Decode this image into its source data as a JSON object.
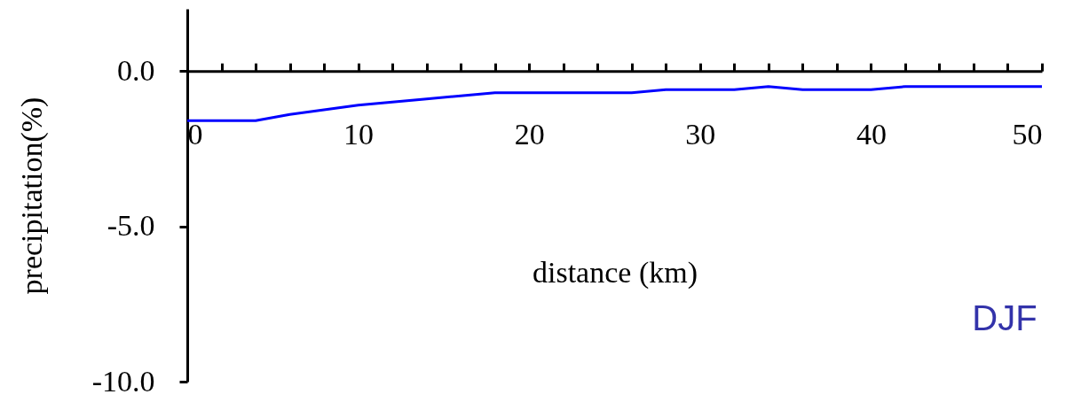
{
  "chart_data": {
    "type": "line",
    "xlabel": "distance (km)",
    "ylabel": "precipitation(%)",
    "annotations": [
      "DJF"
    ],
    "x": [
      0,
      4,
      6,
      10,
      12,
      14,
      16,
      18,
      20,
      22,
      26,
      28,
      32,
      34,
      36,
      40,
      42,
      50
    ],
    "series": [
      {
        "color": "#0000ff",
        "values": [
          -1.6,
          -1.6,
          -1.4,
          -1.1,
          -1.0,
          -0.9,
          -0.8,
          -0.7,
          -0.7,
          -0.7,
          -0.7,
          -0.6,
          -0.6,
          -0.5,
          -0.6,
          -0.6,
          -0.5,
          -0.5
        ]
      }
    ],
    "xlim": [
      0,
      50
    ],
    "ylim": [
      -10,
      2
    ],
    "xticks": [
      0,
      {
        "value": 2,
        "label": null
      },
      {
        "value": 4,
        "label": null
      },
      {
        "value": 6,
        "label": null
      },
      {
        "value": 8,
        "label": null
      },
      10,
      {
        "value": 12,
        "label": null
      },
      {
        "value": 14,
        "label": null
      },
      {
        "value": 16,
        "label": null
      },
      {
        "value": 18,
        "label": null
      },
      20,
      {
        "value": 22,
        "label": null
      },
      {
        "value": 24,
        "label": null
      },
      {
        "value": 26,
        "label": null
      },
      {
        "value": 28,
        "label": null
      },
      30,
      {
        "value": 32,
        "label": null
      },
      {
        "value": 34,
        "label": null
      },
      {
        "value": 36,
        "label": null
      },
      {
        "value": 38,
        "label": null
      },
      40,
      {
        "value": 42,
        "label": null
      },
      {
        "value": 44,
        "label": null
      },
      {
        "value": 46,
        "label": null
      },
      {
        "value": 48,
        "label": null
      },
      50
    ],
    "yticks": [
      {
        "value": 0,
        "label": "0.0"
      },
      {
        "value": -5,
        "label": "-5.0"
      },
      {
        "value": -10,
        "label": "-10.0"
      }
    ],
    "grid": false,
    "marker": "none",
    "line_style": "solid"
  }
}
